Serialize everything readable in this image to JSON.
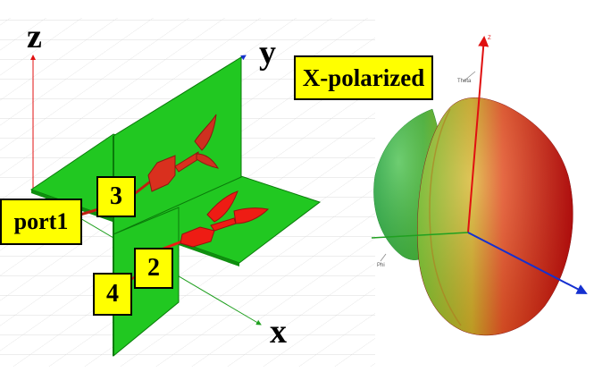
{
  "axes": {
    "z": "z",
    "y": "y",
    "x": "x"
  },
  "callouts": {
    "port1": "port1",
    "port3": "3",
    "port2": "2",
    "port4": "4",
    "polarization": "X-polarized"
  },
  "pattern_axes": {
    "theta": "Theta",
    "phi": "Phi"
  },
  "colors": {
    "substrate": "#21c821",
    "substrate_edge": "#0a7a0a",
    "copper": "#e8231e",
    "callout_fill": "#ffff00",
    "axis_red": "#e01010",
    "axis_blue": "#1530d0",
    "axis_green": "#20a020"
  }
}
